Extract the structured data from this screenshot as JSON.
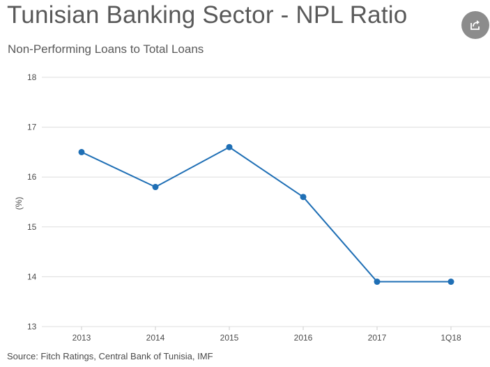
{
  "header": {
    "title": "Tunisian Banking Sector - NPL Ratio",
    "subtitle": "Non-Performing Loans to Total Loans"
  },
  "footer": {
    "source": "Source: Fitch Ratings, Central Bank of Tunisia, IMF"
  },
  "share_button": {
    "icon": "share-icon"
  },
  "colors": {
    "line": "#1f6fb5",
    "grid": "#dddddd",
    "share_button": "#8c8c8c"
  },
  "chart_data": {
    "type": "line",
    "title": "Tunisian Banking Sector - NPL Ratio",
    "subtitle": "Non-Performing Loans to Total Loans",
    "xlabel": "",
    "ylabel": "(%)",
    "categories": [
      "2013",
      "2014",
      "2015",
      "2016",
      "2017",
      "1Q18"
    ],
    "series": [
      {
        "values": [
          16.5,
          15.8,
          16.6,
          15.6,
          13.9,
          13.9
        ]
      }
    ],
    "ylim": [
      13,
      18
    ],
    "yticks": [
      13,
      14,
      15,
      16,
      17,
      18
    ],
    "grid": true,
    "legend": "none"
  }
}
